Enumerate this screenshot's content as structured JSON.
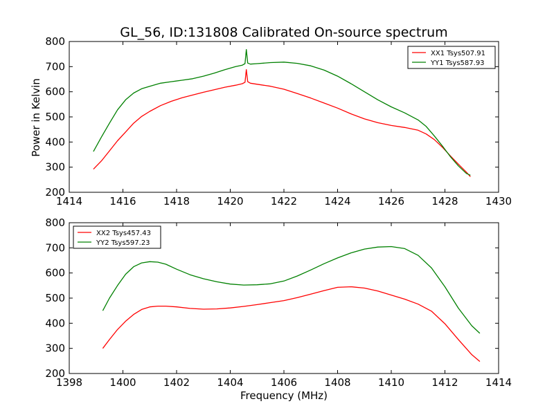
{
  "figure": {
    "title": "GL_56, ID:131808 Calibrated On-source spectrum",
    "ylabel": "Power in Kelvin",
    "xlabel": "Frequency (MHz)"
  },
  "chart_data": [
    {
      "type": "line",
      "title": "GL_56, ID:131808 Calibrated On-source spectrum",
      "xlabel": "",
      "ylabel": "Power in Kelvin",
      "xlim": [
        1414,
        1430
      ],
      "ylim": [
        200,
        800
      ],
      "xticks": [
        1414,
        1416,
        1418,
        1420,
        1422,
        1424,
        1426,
        1428,
        1430
      ],
      "yticks": [
        200,
        300,
        400,
        500,
        600,
        700,
        800
      ],
      "grid": false,
      "legend": "top-right",
      "series": [
        {
          "name": "XX1 Tsys507.91",
          "color": "#ff0000",
          "x": [
            1414.9,
            1415.2,
            1415.5,
            1415.8,
            1416.1,
            1416.4,
            1416.7,
            1417.0,
            1417.4,
            1417.8,
            1418.2,
            1418.6,
            1419.0,
            1419.4,
            1419.8,
            1420.2,
            1420.45,
            1420.55,
            1420.6,
            1420.65,
            1420.75,
            1421.0,
            1421.5,
            1422.0,
            1422.5,
            1423.0,
            1423.5,
            1424.0,
            1424.5,
            1425.0,
            1425.5,
            1426.0,
            1426.5,
            1427.0,
            1427.3,
            1427.6,
            1427.9,
            1428.2,
            1428.5,
            1428.8,
            1428.95
          ],
          "y": [
            292,
            325,
            365,
            405,
            440,
            475,
            502,
            522,
            545,
            562,
            576,
            587,
            598,
            608,
            618,
            626,
            632,
            638,
            688,
            640,
            634,
            630,
            622,
            610,
            593,
            575,
            555,
            535,
            512,
            492,
            477,
            466,
            458,
            447,
            432,
            410,
            380,
            345,
            312,
            280,
            262
          ]
        },
        {
          "name": "YY1 Tsys587.93",
          "color": "#008000",
          "x": [
            1414.9,
            1415.2,
            1415.5,
            1415.8,
            1416.1,
            1416.4,
            1416.7,
            1417.0,
            1417.4,
            1417.8,
            1418.2,
            1418.6,
            1419.0,
            1419.4,
            1419.8,
            1420.2,
            1420.45,
            1420.55,
            1420.6,
            1420.65,
            1420.75,
            1421.0,
            1421.5,
            1422.0,
            1422.5,
            1423.0,
            1423.5,
            1424.0,
            1424.5,
            1425.0,
            1425.5,
            1426.0,
            1426.5,
            1427.0,
            1427.3,
            1427.6,
            1427.9,
            1428.2,
            1428.5,
            1428.8,
            1428.95
          ],
          "y": [
            362,
            420,
            475,
            528,
            568,
            595,
            612,
            622,
            634,
            640,
            646,
            652,
            662,
            674,
            688,
            700,
            706,
            712,
            768,
            714,
            710,
            712,
            716,
            718,
            713,
            703,
            686,
            662,
            632,
            600,
            568,
            540,
            516,
            488,
            462,
            425,
            385,
            342,
            305,
            275,
            268
          ]
        }
      ]
    },
    {
      "type": "line",
      "title": "",
      "xlabel": "Frequency (MHz)",
      "ylabel": "",
      "xlim": [
        1398,
        1414
      ],
      "ylim": [
        200,
        800
      ],
      "xticks": [
        1398,
        1400,
        1402,
        1404,
        1406,
        1408,
        1410,
        1412,
        1414
      ],
      "yticks": [
        200,
        300,
        400,
        500,
        600,
        700,
        800
      ],
      "grid": false,
      "legend": "top-left",
      "series": [
        {
          "name": "XX2 Tsys457.43",
          "color": "#ff0000",
          "x": [
            1399.25,
            1399.5,
            1399.8,
            1400.1,
            1400.4,
            1400.7,
            1401.0,
            1401.3,
            1401.6,
            1402.0,
            1402.5,
            1403.0,
            1403.5,
            1404.0,
            1404.5,
            1405.0,
            1405.5,
            1406.0,
            1406.5,
            1407.0,
            1407.5,
            1408.0,
            1408.5,
            1409.0,
            1409.5,
            1410.0,
            1410.5,
            1411.0,
            1411.5,
            1412.0,
            1412.5,
            1413.0,
            1413.3
          ],
          "y": [
            300,
            335,
            375,
            408,
            435,
            455,
            465,
            468,
            468,
            465,
            459,
            456,
            457,
            461,
            467,
            474,
            482,
            490,
            502,
            516,
            530,
            543,
            545,
            540,
            528,
            512,
            496,
            476,
            448,
            398,
            335,
            275,
            248
          ]
        },
        {
          "name": "YY2 Tsys597.23",
          "color": "#008000",
          "x": [
            1399.25,
            1399.5,
            1399.8,
            1400.1,
            1400.4,
            1400.7,
            1401.0,
            1401.3,
            1401.6,
            1402.0,
            1402.5,
            1403.0,
            1403.5,
            1404.0,
            1404.5,
            1405.0,
            1405.5,
            1406.0,
            1406.5,
            1407.0,
            1407.5,
            1408.0,
            1408.5,
            1409.0,
            1409.5,
            1410.0,
            1410.5,
            1411.0,
            1411.5,
            1412.0,
            1412.5,
            1413.0,
            1413.3
          ],
          "y": [
            450,
            500,
            550,
            595,
            625,
            640,
            645,
            643,
            635,
            615,
            593,
            577,
            565,
            556,
            552,
            553,
            557,
            568,
            588,
            612,
            637,
            660,
            680,
            695,
            703,
            705,
            697,
            670,
            620,
            545,
            460,
            390,
            360
          ]
        }
      ]
    }
  ]
}
